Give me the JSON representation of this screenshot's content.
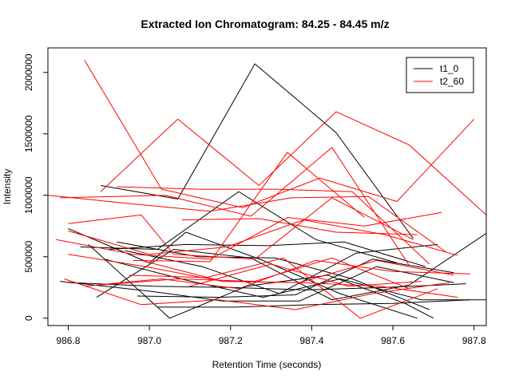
{
  "chart_data": {
    "type": "line",
    "title": "Extracted Ion Chromatogram: 84.25 - 84.45 m/z",
    "xlabel": "Retention Time (seconds)",
    "ylabel": "Intensity",
    "xlim": [
      986.75,
      987.83
    ],
    "ylim": [
      -60000,
      2200000
    ],
    "xticks": [
      "986.8",
      "987.0",
      "987.2",
      "987.4",
      "987.6",
      "987.8"
    ],
    "yticks": [
      "0",
      "500000",
      "1000000",
      "1500000",
      "2000000"
    ],
    "legend_position": "top-right",
    "series": [
      {
        "name": "t1_0",
        "color": "#000000",
        "segments": [
          [
            [
              986.88,
              1080000
            ],
            [
              987.07,
              970000
            ],
            [
              987.26,
              2070000
            ],
            [
              987.46,
              1510000
            ],
            [
              987.65,
              650000
            ]
          ],
          [
            [
              986.8,
              730000
            ],
            [
              987.0,
              450000
            ],
            [
              987.09,
              700000
            ],
            [
              987.28,
              470000
            ],
            [
              987.47,
              200000
            ],
            [
              987.66,
              0
            ]
          ],
          [
            [
              986.83,
              580000
            ],
            [
              987.02,
              560000
            ],
            [
              987.22,
              1030000
            ],
            [
              987.41,
              640000
            ],
            [
              987.61,
              450000
            ]
          ],
          [
            [
              986.9,
              560000
            ],
            [
              987.09,
              600000
            ],
            [
              987.29,
              590000
            ],
            [
              987.48,
              620000
            ],
            [
              987.68,
              420000
            ]
          ],
          [
            [
              986.85,
              600000
            ],
            [
              987.05,
              0
            ],
            [
              987.24,
              260000
            ],
            [
              987.44,
              350000
            ],
            [
              987.63,
              120000
            ],
            [
              987.7,
              0
            ]
          ],
          [
            [
              986.78,
              300000
            ],
            [
              987.0,
              220000
            ],
            [
              987.18,
              140000
            ],
            [
              987.37,
              140000
            ],
            [
              987.56,
              420000
            ],
            [
              987.75,
              290000
            ]
          ],
          [
            [
              986.92,
              620000
            ],
            [
              987.12,
              500000
            ],
            [
              987.31,
              490000
            ],
            [
              987.5,
              320000
            ],
            [
              987.69,
              70000
            ]
          ],
          [
            [
              986.87,
              170000
            ],
            [
              987.06,
              560000
            ],
            [
              987.25,
              490000
            ],
            [
              987.45,
              150000
            ],
            [
              987.64,
              270000
            ],
            [
              987.83,
              690000
            ]
          ],
          [
            [
              986.8,
              290000
            ],
            [
              987.01,
              260000
            ],
            [
              987.2,
              250000
            ],
            [
              987.39,
              230000
            ],
            [
              987.58,
              250000
            ],
            [
              987.78,
              280000
            ]
          ],
          [
            [
              986.94,
              550000
            ],
            [
              987.13,
              420000
            ],
            [
              987.32,
              200000
            ],
            [
              987.51,
              530000
            ],
            [
              987.71,
              600000
            ]
          ],
          [
            [
              986.97,
              180000
            ],
            [
              987.17,
              170000
            ],
            [
              987.36,
              190000
            ],
            [
              987.55,
              480000
            ],
            [
              987.75,
              370000
            ]
          ],
          [
            [
              986.89,
              480000
            ],
            [
              987.09,
              310000
            ],
            [
              987.28,
              170000
            ],
            [
              987.47,
              320000
            ],
            [
              987.67,
              150000
            ],
            [
              987.85,
              150000
            ]
          ],
          [
            [
              987.02,
              90000
            ],
            [
              987.21,
              90000
            ],
            [
              987.4,
              110000
            ],
            [
              987.6,
              120000
            ],
            [
              987.79,
              150000
            ]
          ]
        ]
      },
      {
        "name": "t2_60",
        "color": "#ff0000",
        "segments": [
          [
            [
              986.84,
              2100000
            ],
            [
              987.03,
              1050000
            ],
            [
              987.23,
              900000
            ],
            [
              987.42,
              1140000
            ],
            [
              987.61,
              950000
            ],
            [
              987.8,
              1620000
            ]
          ],
          [
            [
              986.88,
              1030000
            ],
            [
              987.07,
              1620000
            ],
            [
              987.27,
              1080000
            ],
            [
              987.46,
              1680000
            ],
            [
              987.64,
              1410000
            ],
            [
              987.83,
              840000
            ]
          ],
          [
            [
              986.78,
              980000
            ],
            [
              987.04,
              1000000
            ],
            [
              987.25,
              830000
            ],
            [
              987.45,
              1390000
            ],
            [
              987.64,
              430000
            ]
          ],
          [
            [
              986.8,
              710000
            ],
            [
              987.0,
              520000
            ],
            [
              987.19,
              580000
            ],
            [
              987.38,
              800000
            ],
            [
              987.58,
              680000
            ],
            [
              987.76,
              510000
            ]
          ],
          [
            [
              986.8,
              770000
            ],
            [
              986.98,
              840000
            ],
            [
              987.06,
              520000
            ],
            [
              987.26,
              480000
            ],
            [
              987.45,
              980000
            ],
            [
              987.65,
              640000
            ]
          ],
          [
            [
              986.92,
              1070000
            ],
            [
              987.12,
              1050000
            ],
            [
              987.31,
              1050000
            ],
            [
              987.5,
              1030000
            ],
            [
              987.69,
              440000
            ]
          ],
          [
            [
              986.75,
              1000000
            ],
            [
              986.96,
              930000
            ],
            [
              987.15,
              870000
            ],
            [
              987.35,
              980000
            ],
            [
              987.54,
              990000
            ],
            [
              987.73,
              540000
            ]
          ],
          [
            [
              986.8,
              520000
            ],
            [
              986.99,
              420000
            ],
            [
              987.18,
              300000
            ],
            [
              987.37,
              290000
            ],
            [
              987.56,
              470000
            ],
            [
              987.75,
              350000
            ]
          ],
          [
            [
              986.79,
              320000
            ],
            [
              986.98,
              110000
            ],
            [
              987.17,
              150000
            ],
            [
              987.36,
              70000
            ],
            [
              987.55,
              200000
            ],
            [
              987.74,
              290000
            ]
          ],
          [
            [
              986.77,
              640000
            ],
            [
              986.96,
              520000
            ],
            [
              987.15,
              480000
            ],
            [
              987.34,
              820000
            ],
            [
              987.53,
              750000
            ],
            [
              987.72,
              860000
            ]
          ],
          [
            [
              986.84,
              260000
            ],
            [
              987.03,
              320000
            ],
            [
              987.22,
              240000
            ],
            [
              987.41,
              470000
            ],
            [
              987.6,
              380000
            ],
            [
              987.79,
              360000
            ]
          ],
          [
            [
              986.95,
              350000
            ],
            [
              987.14,
              330000
            ],
            [
              987.33,
              490000
            ],
            [
              987.52,
              0
            ],
            [
              987.71,
              240000
            ]
          ],
          [
            [
              986.88,
              270000
            ],
            [
              987.07,
              320000
            ],
            [
              987.26,
              300000
            ],
            [
              987.45,
              490000
            ],
            [
              987.64,
              240000
            ]
          ],
          [
            [
              986.96,
              470000
            ],
            [
              987.15,
              460000
            ],
            [
              987.34,
              1350000
            ],
            [
              987.53,
              820000
            ]
          ],
          [
            [
              987.08,
              800000
            ],
            [
              987.27,
              810000
            ],
            [
              987.46,
              700000
            ],
            [
              987.66,
              680000
            ]
          ],
          [
            [
              986.98,
              470000
            ],
            [
              987.18,
              300000
            ],
            [
              987.37,
              290000
            ],
            [
              987.57,
              260000
            ],
            [
              987.76,
              170000
            ]
          ],
          [
            [
              987.1,
              260000
            ],
            [
              987.3,
              440000
            ],
            [
              987.49,
              260000
            ],
            [
              987.67,
              300000
            ]
          ]
        ]
      }
    ]
  }
}
